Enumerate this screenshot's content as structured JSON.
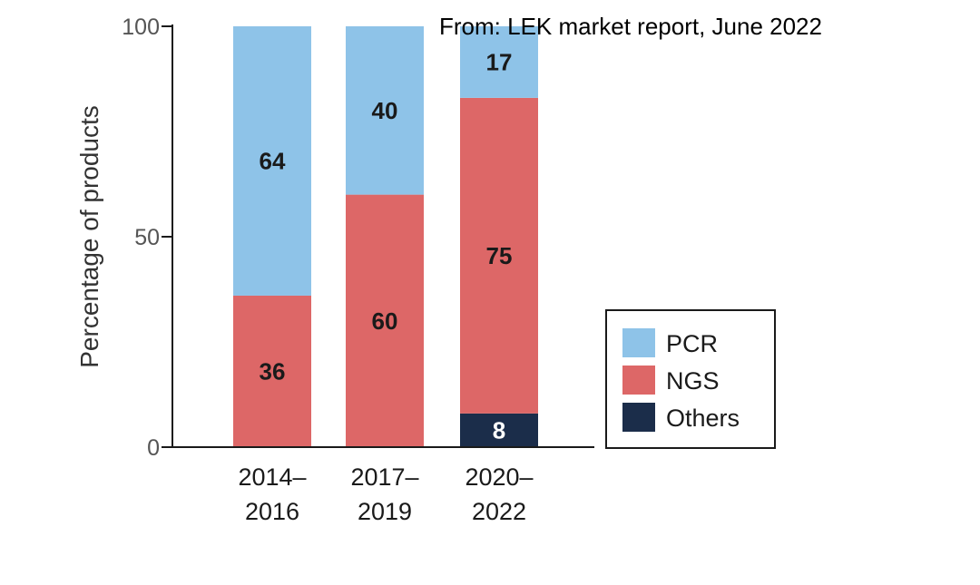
{
  "source_note": "From: LEK market report, June 2022",
  "chart_data": {
    "type": "bar",
    "stacked": true,
    "title": "",
    "xlabel": "",
    "ylabel": "Percentage of products",
    "ylim": [
      0,
      100
    ],
    "yticks": [
      "0",
      "50",
      "100"
    ],
    "categories": [
      [
        "2014–",
        "2016"
      ],
      [
        "2017–",
        "2019"
      ],
      [
        "2020–",
        "2022"
      ]
    ],
    "series": [
      {
        "name": "Others",
        "color": "#1b2d4a",
        "label_color": "#ffffff",
        "values": [
          0,
          0,
          8
        ]
      },
      {
        "name": "NGS",
        "color": "#dd6767",
        "label_color": "#1a1a1a",
        "values": [
          36,
          60,
          75
        ]
      },
      {
        "name": "PCR",
        "color": "#8ec3e8",
        "label_color": "#1a1a1a",
        "values": [
          64,
          40,
          17
        ]
      }
    ],
    "legend": {
      "position": "right",
      "entries": [
        {
          "name": "PCR",
          "color": "#8ec3e8"
        },
        {
          "name": "NGS",
          "color": "#dd6767"
        },
        {
          "name": "Others",
          "color": "#1b2d4a"
        }
      ]
    }
  }
}
